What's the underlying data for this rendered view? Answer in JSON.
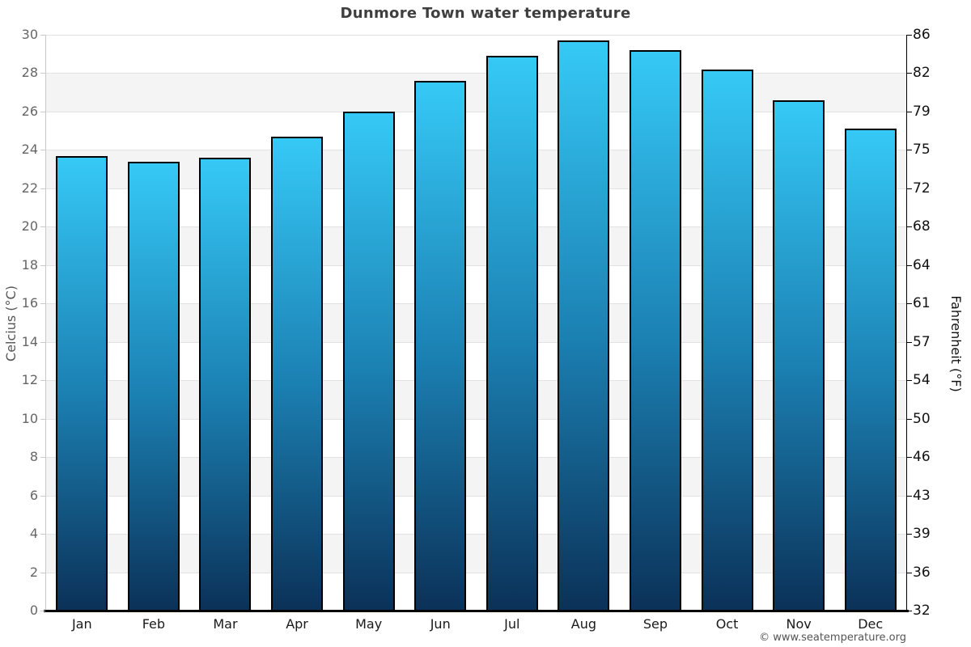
{
  "title": "Dunmore Town water temperature",
  "copyright": "© www.seatemperature.org",
  "chart_data": {
    "type": "bar",
    "title": "Dunmore Town water temperature",
    "categories": [
      "Jan",
      "Feb",
      "Mar",
      "Apr",
      "May",
      "Jun",
      "Jul",
      "Aug",
      "Sep",
      "Oct",
      "Nov",
      "Dec"
    ],
    "values": [
      23.7,
      23.4,
      23.6,
      24.7,
      26.0,
      27.6,
      28.9,
      29.7,
      29.2,
      28.2,
      26.6,
      25.1
    ],
    "series_name": "Water temperature (°C)",
    "xlabel": "",
    "ylabel_left": "Celcius (°C)",
    "ylabel_right": "Fahrenheit (°F)",
    "ylim": [
      0,
      30
    ],
    "celsius_ticks": [
      0,
      2,
      4,
      6,
      8,
      10,
      12,
      14,
      16,
      18,
      20,
      22,
      24,
      26,
      28,
      30
    ],
    "fahrenheit_ticks": [
      "32",
      "36",
      "39",
      "43",
      "46",
      "50",
      "54",
      "57",
      "61",
      "64",
      "68",
      "72",
      "75",
      "79",
      "82",
      "86"
    ],
    "grid": "alternating horizontal bands, 2°C each",
    "legend": "none",
    "colors": {
      "bar_gradient_top": "#36c9f6",
      "bar_gradient_mid": "#1b80b2",
      "bar_gradient_bottom": "#0b3158",
      "bar_border": "#000000",
      "band_shaded": "#f4f4f4",
      "band_plain": "#ffffff",
      "gridline": "#e2e2e2",
      "left_axis": "#c9c9c9",
      "right_axis": "#000000",
      "left_tick_label": "#666666",
      "right_tick_label": "#111111",
      "title_color": "#3f3f3f"
    }
  }
}
